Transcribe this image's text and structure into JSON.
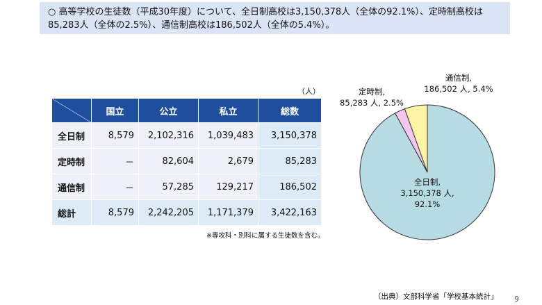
{
  "summary": {
    "line1": "○ 高等学校の生徒数（平成30年度）について、全日制高校は3,150,378人（全体の92.1%）、定時制高校は",
    "line2": "85,283人（全体の2.5%）、通信制高校は186,502人（全体の5.4%）。"
  },
  "table": {
    "unit": "（人）",
    "headers": [
      "国立",
      "公立",
      "私立",
      "総数"
    ],
    "rows": [
      {
        "label": "全日制",
        "values": [
          "8,579",
          "2,102,316",
          "1,039,483",
          "3,150,378"
        ]
      },
      {
        "label": "定時制",
        "values": [
          "－",
          "82,604",
          "2,679",
          "85,283"
        ]
      },
      {
        "label": "通信制",
        "values": [
          "－",
          "57,285",
          "129,217",
          "186,502"
        ]
      },
      {
        "label": "総計",
        "values": [
          "8,579",
          "2,242,205",
          "1,171,379",
          "3,422,163"
        ]
      }
    ],
    "note": "※専攻科・別科に属する生徒数を含む。"
  },
  "chart_data": {
    "type": "pie",
    "slices": [
      {
        "label": "全日制,",
        "value": 3150378,
        "value_text": "3,150,378 人,",
        "percent_text": "92.1%",
        "percent": 92.1,
        "color": "#b7dbe3"
      },
      {
        "label": "定時制,",
        "value": 85283,
        "value_text": "85,283 人, 2.5%",
        "percent": 2.5,
        "color": "#f5c6f0"
      },
      {
        "label": "通信制,",
        "value": 186502,
        "value_text": "186,502 人, 5.4%",
        "percent": 5.4,
        "color": "#fdf5a6"
      }
    ]
  },
  "source": "（出典）文部科学省「学校基本統計」",
  "page_number": "9"
}
